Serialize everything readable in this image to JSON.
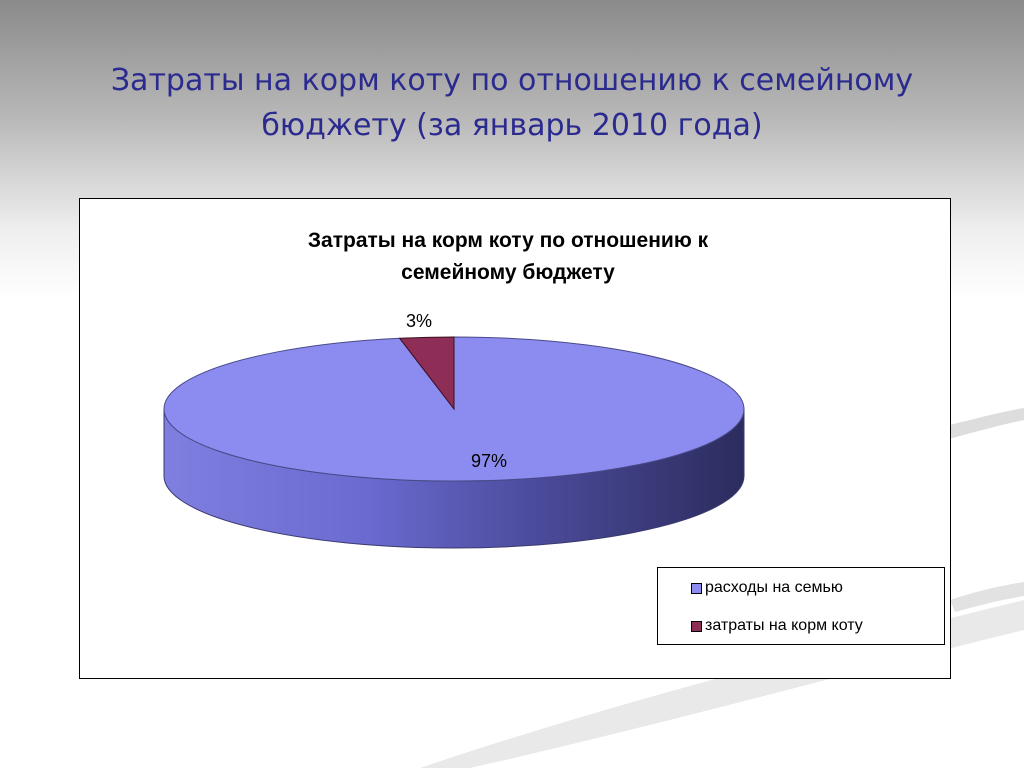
{
  "slide": {
    "title": "Затраты на корм коту по отношению к семейному бюджету (за январь 2010 года)"
  },
  "colors": {
    "family": "#8c8cf0",
    "cat_food": "#8e2d55"
  },
  "chart_data": {
    "type": "pie",
    "title_lines": [
      "Затраты на корм коту по отношению к",
      "семейному бюджету"
    ],
    "slices": [
      {
        "name": "расходы на семью",
        "value": 97,
        "label": "97%",
        "color": "#8c8cf0"
      },
      {
        "name": "затраты на корм коту",
        "value": 3,
        "label": "3%",
        "color": "#8e2d55"
      }
    ],
    "legend_position": "bottom-right",
    "style": "3d"
  }
}
